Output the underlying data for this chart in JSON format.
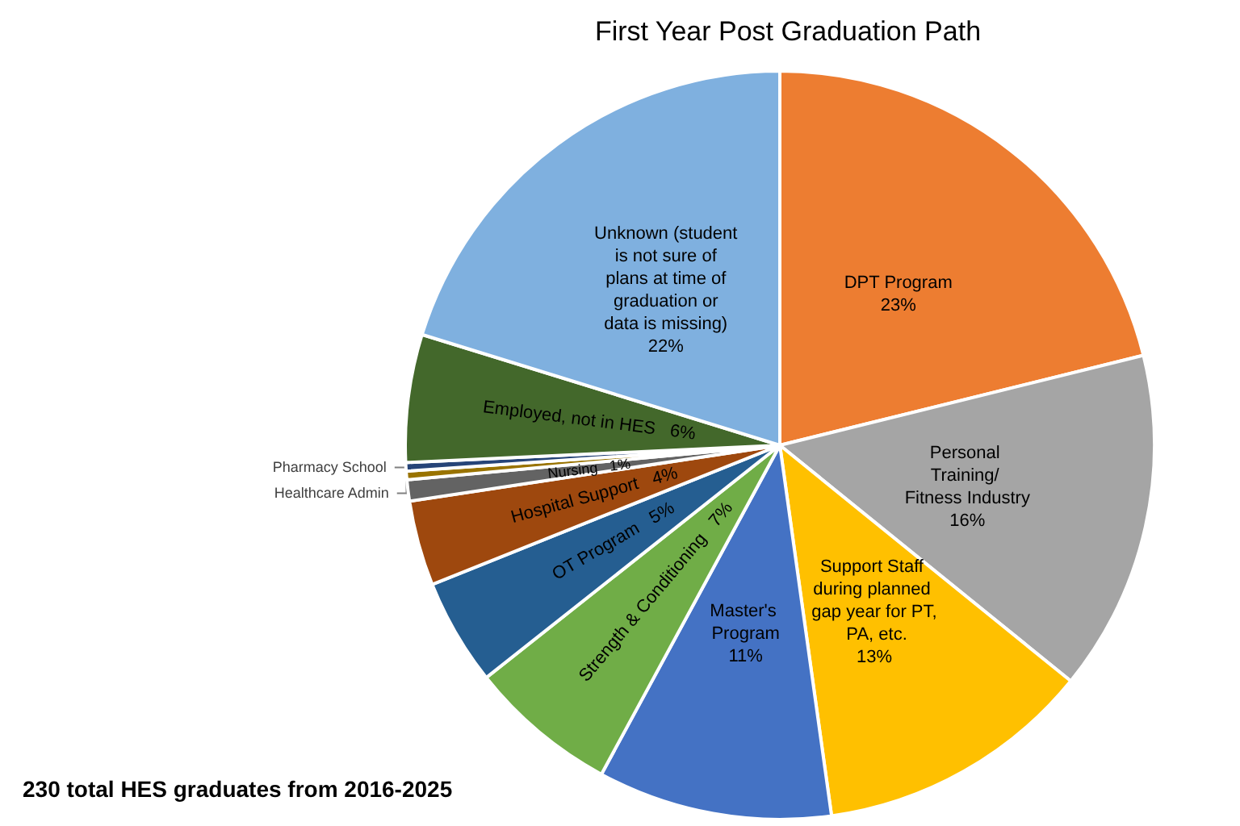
{
  "chart_data": {
    "type": "pie",
    "title": "First Year Post Graduation Path",
    "categories": [
      "DPT Program",
      "Personal Training/ Fitness Industry",
      "Support Staff during planned gap year for PT, PA, etc.",
      "Master's Program",
      "Strength & Conditioning",
      "OT Program",
      "Hospital Support",
      "Nursing",
      "Healthcare Admin",
      "Pharmacy School",
      "Employed, not in HES",
      "Unknown (student is not sure of plans at time of graduation or data is missing)"
    ],
    "values": [
      23,
      16,
      13,
      11,
      7,
      5,
      4,
      1,
      0.4,
      0.4,
      6,
      22
    ],
    "value_labels": [
      "23%",
      "16%",
      "13%",
      "11%",
      "7%",
      "5%",
      "4%",
      "1%",
      null,
      null,
      "6%",
      "22%"
    ],
    "colors": [
      "#ed7d31",
      "#a5a5a5",
      "#ffc000",
      "#4472c4",
      "#70ad47",
      "#255e91",
      "#9e480e",
      "#636363",
      "#997300",
      "#264478",
      "#43682b",
      "#7fb0df"
    ],
    "legend": false,
    "annotations": [
      "230 total HES graduates from 2016-2025"
    ]
  }
}
